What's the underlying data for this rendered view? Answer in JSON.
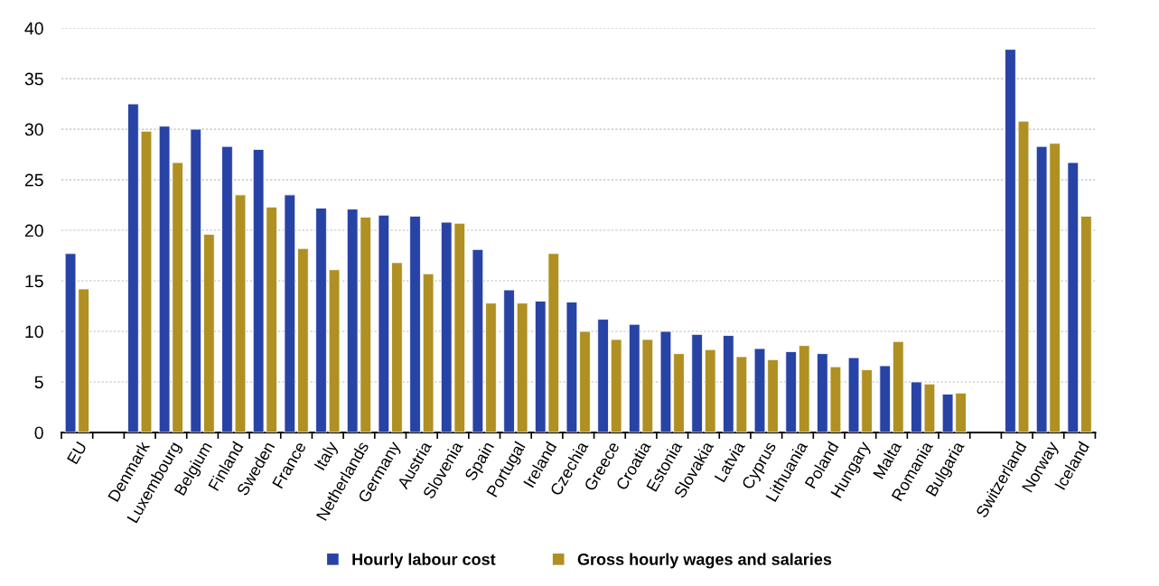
{
  "chart_data": {
    "type": "bar",
    "categories": [
      "EU",
      null,
      "Denmark",
      "Luxembourg",
      "Belgium",
      "Finland",
      "Sweden",
      "France",
      "Italy",
      "Netherlands",
      "Germany",
      "Austria",
      "Slovenia",
      "Spain",
      "Portugal",
      "Ireland",
      "Czechia",
      "Greece",
      "Croatia",
      "Estonia",
      "Slovakia",
      "Latvia",
      "Cyprus",
      "Lithuania",
      "Poland",
      "Hungary",
      "Malta",
      "Romania",
      "Bulgaria",
      null,
      "Switzerland",
      "Norway",
      "Iceland"
    ],
    "series": [
      {
        "name": "Hourly labour cost",
        "color": "#2843a6",
        "values": [
          17.7,
          null,
          32.5,
          30.3,
          30.0,
          28.3,
          28.0,
          23.5,
          22.2,
          22.1,
          21.5,
          21.4,
          20.8,
          18.1,
          14.1,
          13.0,
          12.9,
          11.2,
          10.7,
          10.0,
          9.7,
          9.6,
          8.3,
          8.0,
          7.8,
          7.4,
          6.6,
          5.0,
          3.8,
          null,
          37.9,
          28.3,
          26.7
        ]
      },
      {
        "name": "Gross hourly wages and salaries",
        "color": "#b09022",
        "values": [
          14.2,
          null,
          29.8,
          26.7,
          19.6,
          23.5,
          22.3,
          18.2,
          16.1,
          21.3,
          16.8,
          15.7,
          20.7,
          12.8,
          12.8,
          17.7,
          10.0,
          9.2,
          9.2,
          7.8,
          8.2,
          7.5,
          7.2,
          8.6,
          6.5,
          6.2,
          9.0,
          4.8,
          3.9,
          null,
          30.8,
          28.6,
          21.4
        ]
      }
    ],
    "ylim": [
      0,
      40
    ],
    "yticks": [
      0,
      5,
      10,
      15,
      20,
      25,
      30,
      35,
      40
    ],
    "grid": "y",
    "legend": "bottom"
  }
}
